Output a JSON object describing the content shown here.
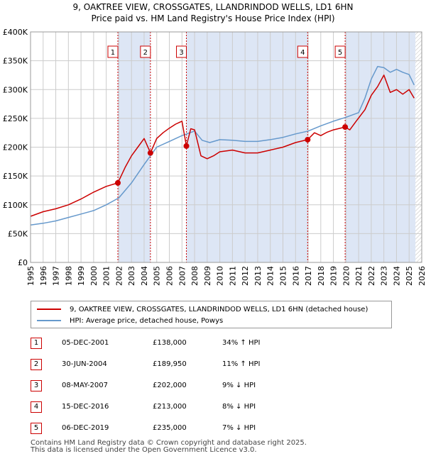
{
  "title_line1": "9, OAKTREE VIEW, CROSSGATES, LLANDRINDOD WELLS, LD1 6HN",
  "title_line2": "Price paid vs. HM Land Registry's House Price Index (HPI)",
  "colors": {
    "property": "#cc0000",
    "hpi": "#6699cc",
    "shade": "#dde6f5",
    "grid": "#cccccc"
  },
  "chart_data": {
    "type": "line",
    "xlim": [
      1995,
      2026
    ],
    "ylim": [
      0,
      400000
    ],
    "x_ticks": [
      1995,
      1996,
      1997,
      1998,
      1999,
      2000,
      2001,
      2002,
      2003,
      2004,
      2005,
      2006,
      2007,
      2008,
      2009,
      2010,
      2011,
      2012,
      2013,
      2014,
      2015,
      2016,
      2017,
      2018,
      2019,
      2020,
      2021,
      2022,
      2023,
      2024,
      2025,
      2026
    ],
    "y_ticks": [
      {
        "value": 0,
        "label": "£0"
      },
      {
        "value": 50000,
        "label": "£50K"
      },
      {
        "value": 100000,
        "label": "£100K"
      },
      {
        "value": 150000,
        "label": "£150K"
      },
      {
        "value": 200000,
        "label": "£200K"
      },
      {
        "value": 250000,
        "label": "£250K"
      },
      {
        "value": 300000,
        "label": "£300K"
      },
      {
        "value": 350000,
        "label": "£350K"
      },
      {
        "value": 400000,
        "label": "£400K"
      }
    ],
    "shaded_ranges": [
      [
        2001.92,
        2004.5
      ],
      [
        2007.35,
        2016.96
      ],
      [
        2019.93,
        2025.5
      ]
    ],
    "hatch_from": 2025.5,
    "series": [
      {
        "name": "9, OAKTREE VIEW, CROSSGATES, LLANDRINDOD WELLS, LD1 6HN (detached house)",
        "color": "#cc0000",
        "x": [
          1995,
          1996,
          1997,
          1998,
          1999,
          2000,
          2001,
          2001.92,
          2002.5,
          2003,
          2003.5,
          2004,
          2004.5,
          2005,
          2005.5,
          2006,
          2006.5,
          2007,
          2007.35,
          2007.7,
          2008,
          2008.5,
          2009,
          2009.5,
          2010,
          2011,
          2012,
          2013,
          2014,
          2015,
          2016,
          2016.96,
          2017.5,
          2018,
          2018.5,
          2019,
          2019.93,
          2020.3,
          2020.8,
          2021.5,
          2022,
          2022.5,
          2023,
          2023.5,
          2024,
          2024.5,
          2025,
          2025.4
        ],
        "y": [
          80000,
          88000,
          93000,
          100000,
          110000,
          122000,
          132000,
          138000,
          165000,
          185000,
          200000,
          215000,
          190000,
          215000,
          225000,
          233000,
          240000,
          245000,
          202000,
          232000,
          230000,
          185000,
          180000,
          185000,
          192000,
          195000,
          190000,
          190000,
          195000,
          200000,
          208000,
          213000,
          225000,
          220000,
          226000,
          230000,
          235000,
          230000,
          245000,
          265000,
          290000,
          305000,
          325000,
          295000,
          300000,
          292000,
          300000,
          285000
        ]
      },
      {
        "name": "HPI: Average price, detached house, Powys",
        "color": "#6699cc",
        "x": [
          1995,
          1996,
          1997,
          1998,
          1999,
          2000,
          2001,
          2002,
          2003,
          2004,
          2005,
          2006,
          2007,
          2008,
          2008.6,
          2009.2,
          2010,
          2011,
          2012,
          2013,
          2014,
          2015,
          2016,
          2017,
          2018,
          2019,
          2020,
          2021,
          2021.5,
          2022,
          2022.5,
          2023,
          2023.5,
          2024,
          2024.5,
          2025,
          2025.4
        ],
        "y": [
          65000,
          68000,
          72000,
          78000,
          84000,
          90000,
          100000,
          112000,
          138000,
          170000,
          200000,
          210000,
          220000,
          228000,
          212000,
          208000,
          213000,
          212000,
          210000,
          210000,
          213000,
          217000,
          223000,
          228000,
          237000,
          245000,
          252000,
          260000,
          285000,
          318000,
          340000,
          338000,
          330000,
          335000,
          330000,
          326000,
          308000
        ]
      }
    ],
    "sales": [
      {
        "label": "1",
        "x": 2001.92,
        "y": 138000
      },
      {
        "label": "2",
        "x": 2004.5,
        "y": 189950
      },
      {
        "label": "3",
        "x": 2007.35,
        "y": 202000
      },
      {
        "label": "4",
        "x": 2016.96,
        "y": 213000
      },
      {
        "label": "5",
        "x": 2019.93,
        "y": 235000
      }
    ]
  },
  "legend": {
    "property": "9, OAKTREE VIEW, CROSSGATES, LLANDRINDOD WELLS, LD1 6HN (detached house)",
    "hpi": "HPI: Average price, detached house, Powys"
  },
  "transactions": [
    {
      "num": "1",
      "date": "05-DEC-2001",
      "price": "£138,000",
      "hpi": "34% ↑ HPI"
    },
    {
      "num": "2",
      "date": "30-JUN-2004",
      "price": "£189,950",
      "hpi": "11% ↑ HPI"
    },
    {
      "num": "3",
      "date": "08-MAY-2007",
      "price": "£202,000",
      "hpi": "9% ↓ HPI"
    },
    {
      "num": "4",
      "date": "15-DEC-2016",
      "price": "£213,000",
      "hpi": "8% ↓ HPI"
    },
    {
      "num": "5",
      "date": "06-DEC-2019",
      "price": "£235,000",
      "hpi": "7% ↓ HPI"
    }
  ],
  "footer": {
    "line1": "Contains HM Land Registry data © Crown copyright and database right 2025.",
    "line2": "This data is licensed under the Open Government Licence v3.0."
  }
}
